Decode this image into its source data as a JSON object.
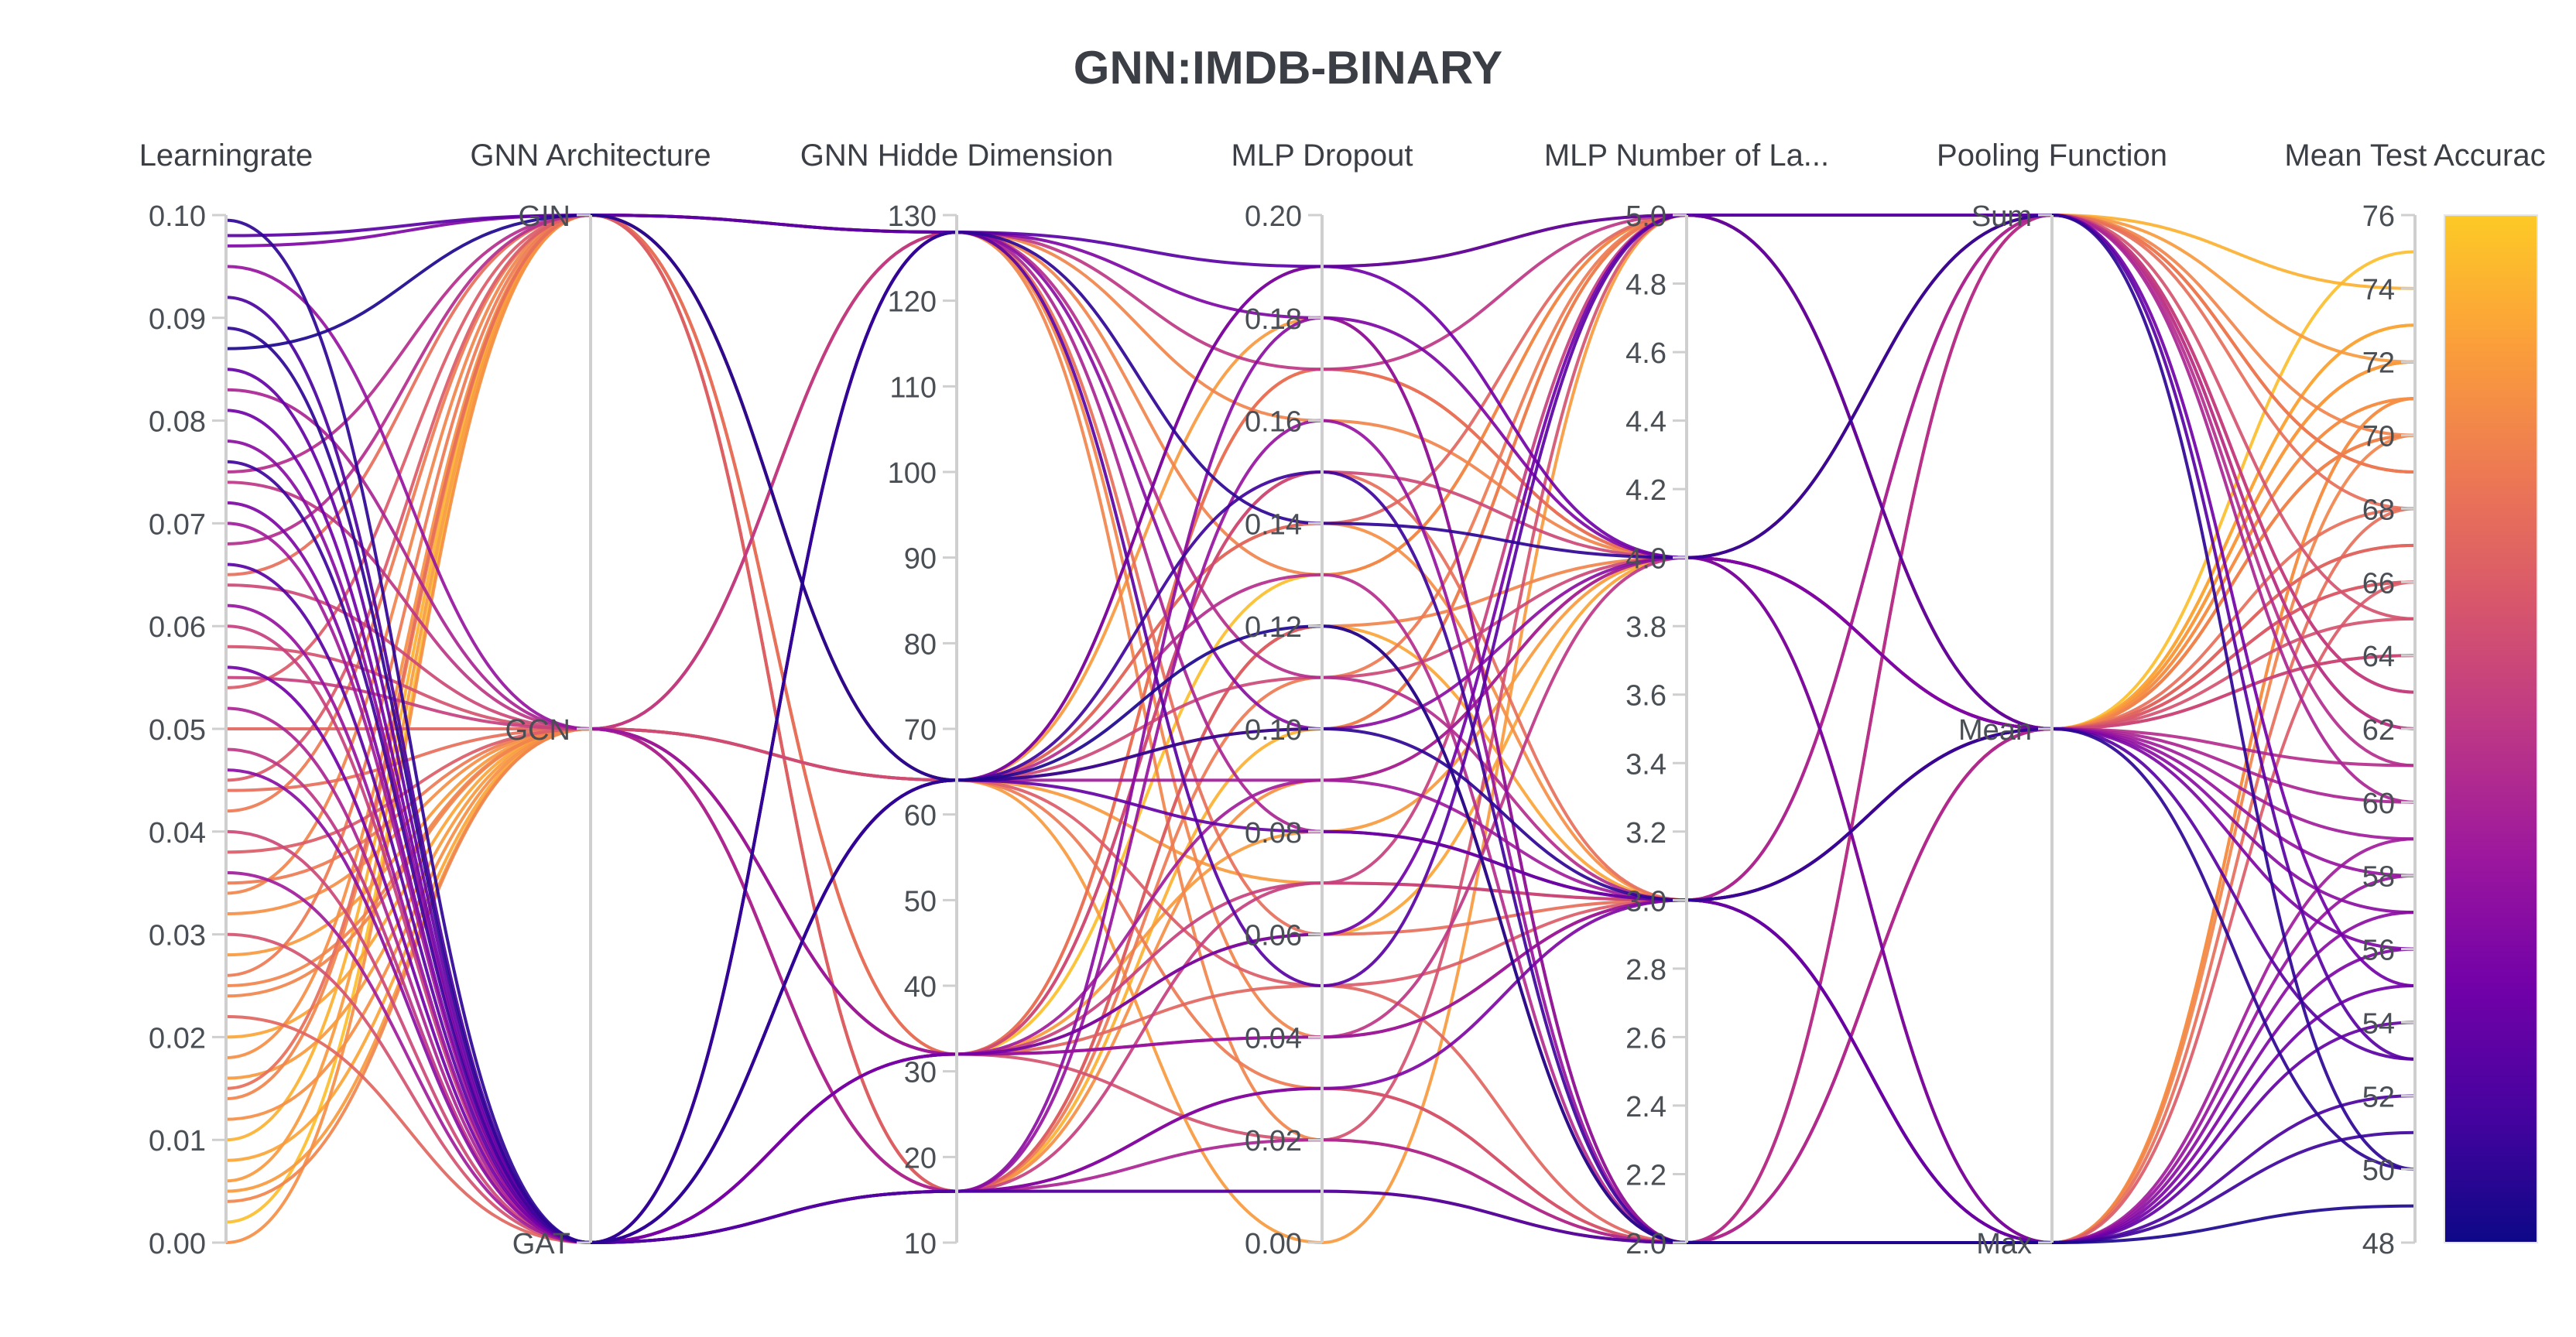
{
  "chart_data": {
    "type": "parallel_coordinates",
    "title": "GNN:IMDB-BINARY",
    "axes": [
      {
        "key": "lr",
        "label": "Learningrate",
        "kind": "numeric",
        "range": [
          0,
          0.1
        ],
        "ticks": [
          "0.00",
          "0.01",
          "0.02",
          "0.03",
          "0.04",
          "0.05",
          "0.06",
          "0.07",
          "0.08",
          "0.09",
          "0.10"
        ]
      },
      {
        "key": "arch",
        "label": "GNN Architecture",
        "kind": "categorical",
        "categories": [
          "GAT",
          "GCN",
          "GIN"
        ],
        "ticks": [
          "GAT",
          "GCN",
          "GIN"
        ]
      },
      {
        "key": "hid",
        "label": "GNN Hidde Dimension",
        "kind": "numeric",
        "range": [
          10,
          130
        ],
        "ticks": [
          "10",
          "20",
          "30",
          "40",
          "50",
          "60",
          "70",
          "80",
          "90",
          "100",
          "110",
          "120",
          "130"
        ]
      },
      {
        "key": "drop",
        "label": "MLP Dropout",
        "kind": "numeric",
        "range": [
          0,
          0.2
        ],
        "ticks": [
          "0.00",
          "0.02",
          "0.04",
          "0.06",
          "0.08",
          "0.10",
          "0.12",
          "0.14",
          "0.16",
          "0.18",
          "0.20"
        ]
      },
      {
        "key": "layers",
        "label": "MLP Number of La...",
        "kind": "numeric",
        "range": [
          2,
          5
        ],
        "ticks": [
          "2.0",
          "2.2",
          "2.4",
          "2.6",
          "2.8",
          "3.0",
          "3.2",
          "3.4",
          "3.6",
          "3.8",
          "4.0",
          "4.2",
          "4.4",
          "4.6",
          "4.8",
          "5.0"
        ]
      },
      {
        "key": "pool",
        "label": "Pooling Function",
        "kind": "categorical",
        "categories": [
          "Max",
          "Mean",
          "Sum"
        ],
        "ticks": [
          "Max",
          "Mean",
          "Sum"
        ]
      },
      {
        "key": "acc",
        "label": "Mean Test Accurac",
        "kind": "numeric",
        "range": [
          48,
          76
        ],
        "ticks": [
          "48",
          "50",
          "52",
          "54",
          "56",
          "58",
          "60",
          "62",
          "64",
          "66",
          "68",
          "70",
          "72",
          "74",
          "76"
        ]
      }
    ],
    "colorscale": {
      "range": [
        48,
        76
      ],
      "stops": [
        "#0d0887",
        "#46039f",
        "#7201a8",
        "#9c179e",
        "#bd3786",
        "#d8576b",
        "#ed7953",
        "#fb9f3a",
        "#fdca26",
        "#f0f921"
      ],
      "ticks": [
        "48",
        "50",
        "52",
        "54",
        "56",
        "58",
        "60",
        "62",
        "64",
        "66",
        "68",
        "70",
        "72",
        "74",
        "76"
      ]
    },
    "runs": [
      {
        "lr": 0.098,
        "arch": "GIN",
        "hid": 128,
        "drop": 0.19,
        "layers": 5,
        "pool": "Sum",
        "acc": 53
      },
      {
        "lr": 0.097,
        "arch": "GIN",
        "hid": 128,
        "drop": 0.18,
        "layers": 4,
        "pool": "Mean",
        "acc": 56
      },
      {
        "lr": 0.087,
        "arch": "GIN",
        "hid": 64,
        "drop": 0.12,
        "layers": 2,
        "pool": "Max",
        "acc": 49
      },
      {
        "lr": 0.095,
        "arch": "GCN",
        "hid": 32,
        "drop": 0.04,
        "layers": 3,
        "pool": "Mean",
        "acc": 58
      },
      {
        "lr": 0.092,
        "arch": "GAT",
        "hid": 16,
        "drop": 0.01,
        "layers": 2,
        "pool": "Max",
        "acc": 52
      },
      {
        "lr": 0.089,
        "arch": "GAT",
        "hid": 128,
        "drop": 0.14,
        "layers": 4,
        "pool": "Sum",
        "acc": 50
      },
      {
        "lr": 0.085,
        "arch": "GAT",
        "hid": 64,
        "drop": 0.08,
        "layers": 3,
        "pool": "Max",
        "acc": 54
      },
      {
        "lr": 0.083,
        "arch": "GCN",
        "hid": 16,
        "drop": 0.02,
        "layers": 2,
        "pool": "Mean",
        "acc": 60
      },
      {
        "lr": 0.081,
        "arch": "GAT",
        "hid": 32,
        "drop": 0.06,
        "layers": 5,
        "pool": "Sum",
        "acc": 55
      },
      {
        "lr": 0.078,
        "arch": "GAT",
        "hid": 128,
        "drop": 0.1,
        "layers": 4,
        "pool": "Mean",
        "acc": 57
      },
      {
        "lr": 0.076,
        "arch": "GAT",
        "hid": 64,
        "drop": 0.15,
        "layers": 2,
        "pool": "Max",
        "acc": 51
      },
      {
        "lr": 0.074,
        "arch": "GCN",
        "hid": 128,
        "drop": 0.17,
        "layers": 5,
        "pool": "Sum",
        "acc": 62
      },
      {
        "lr": 0.072,
        "arch": "GAT",
        "hid": 16,
        "drop": 0.03,
        "layers": 3,
        "pool": "Max",
        "acc": 56
      },
      {
        "lr": 0.07,
        "arch": "GAT",
        "hid": 32,
        "drop": 0.09,
        "layers": 4,
        "pool": "Mean",
        "acc": 59
      },
      {
        "lr": 0.068,
        "arch": "GIN",
        "hid": 64,
        "drop": 0.13,
        "layers": 2,
        "pool": "Sum",
        "acc": 61
      },
      {
        "lr": 0.066,
        "arch": "GAT",
        "hid": 128,
        "drop": 0.05,
        "layers": 5,
        "pool": "Mean",
        "acc": 53
      },
      {
        "lr": 0.064,
        "arch": "GCN",
        "hid": 64,
        "drop": 0.11,
        "layers": 4,
        "pool": "Mean",
        "acc": 64
      },
      {
        "lr": 0.062,
        "arch": "GAT",
        "hid": 16,
        "drop": 0.16,
        "layers": 2,
        "pool": "Max",
        "acc": 58
      },
      {
        "lr": 0.06,
        "arch": "GAT",
        "hid": 32,
        "drop": 0.07,
        "layers": 3,
        "pool": "Sum",
        "acc": 63
      },
      {
        "lr": 0.058,
        "arch": "GCN",
        "hid": 32,
        "drop": 0.02,
        "layers": 5,
        "pool": "Mean",
        "acc": 65
      },
      {
        "lr": 0.056,
        "arch": "GAT",
        "hid": 64,
        "drop": 0.19,
        "layers": 4,
        "pool": "Max",
        "acc": 55
      },
      {
        "lr": 0.054,
        "arch": "GIN",
        "hid": 16,
        "drop": 0.12,
        "layers": 2,
        "pool": "Mean",
        "acc": 66
      },
      {
        "lr": 0.052,
        "arch": "GAT",
        "hid": 128,
        "drop": 0.08,
        "layers": 3,
        "pool": "Sum",
        "acc": 60
      },
      {
        "lr": 0.05,
        "arch": "GCN",
        "hid": 64,
        "drop": 0.14,
        "layers": 5,
        "pool": "Mean",
        "acc": 67
      },
      {
        "lr": 0.048,
        "arch": "GAT",
        "hid": 32,
        "drop": 0.04,
        "layers": 4,
        "pool": "Sum",
        "acc": 62
      },
      {
        "lr": 0.046,
        "arch": "GAT",
        "hid": 16,
        "drop": 0.18,
        "layers": 2,
        "pool": "Max",
        "acc": 57
      },
      {
        "lr": 0.044,
        "arch": "GCN",
        "hid": 128,
        "drop": 0.06,
        "layers": 3,
        "pool": "Mean",
        "acc": 68
      },
      {
        "lr": 0.042,
        "arch": "GIN",
        "hid": 64,
        "drop": 0.1,
        "layers": 5,
        "pool": "Sum",
        "acc": 69
      },
      {
        "lr": 0.04,
        "arch": "GAT",
        "hid": 32,
        "drop": 0.15,
        "layers": 4,
        "pool": "Mean",
        "acc": 64
      },
      {
        "lr": 0.038,
        "arch": "GCN",
        "hid": 16,
        "drop": 0.01,
        "layers": 2,
        "pool": "Max",
        "acc": 66
      },
      {
        "lr": 0.036,
        "arch": "GAT",
        "hid": 64,
        "drop": 0.09,
        "layers": 3,
        "pool": "Max",
        "acc": 59
      },
      {
        "lr": 0.034,
        "arch": "GIN",
        "hid": 128,
        "drop": 0.13,
        "layers": 5,
        "pool": "Mean",
        "acc": 70
      },
      {
        "lr": 0.032,
        "arch": "GCN",
        "hid": 32,
        "drop": 0.17,
        "layers": 4,
        "pool": "Mean",
        "acc": 71
      },
      {
        "lr": 0.03,
        "arch": "GAT",
        "hid": 16,
        "drop": 0.03,
        "layers": 2,
        "pool": "Sum",
        "acc": 65
      },
      {
        "lr": 0.028,
        "arch": "GCN",
        "hid": 64,
        "drop": 0.07,
        "layers": 3,
        "pool": "Mean",
        "acc": 72
      },
      {
        "lr": 0.026,
        "arch": "GIN",
        "hid": 16,
        "drop": 0.11,
        "layers": 5,
        "pool": "Sum",
        "acc": 69
      },
      {
        "lr": 0.024,
        "arch": "GCN",
        "hid": 128,
        "drop": 0.16,
        "layers": 4,
        "pool": "Max",
        "acc": 70
      },
      {
        "lr": 0.022,
        "arch": "GAT",
        "hid": 32,
        "drop": 0.05,
        "layers": 2,
        "pool": "Mean",
        "acc": 67
      },
      {
        "lr": 0.02,
        "arch": "GCN",
        "hid": 16,
        "drop": 0.12,
        "layers": 3,
        "pool": "Mean",
        "acc": 73
      },
      {
        "lr": 0.018,
        "arch": "GIN",
        "hid": 64,
        "drop": 0.19,
        "layers": 5,
        "pool": "Mean",
        "acc": 71
      },
      {
        "lr": 0.016,
        "arch": "GCN",
        "hid": 32,
        "drop": 0.08,
        "layers": 4,
        "pool": "Sum",
        "acc": 72
      },
      {
        "lr": 0.014,
        "arch": "GIN",
        "hid": 128,
        "drop": 0.02,
        "layers": 2,
        "pool": "Mean",
        "acc": 70
      },
      {
        "lr": 0.012,
        "arch": "GCN",
        "hid": 64,
        "drop": 0.14,
        "layers": 3,
        "pool": "Max",
        "acc": 71
      },
      {
        "lr": 0.01,
        "arch": "GIN",
        "hid": 16,
        "drop": 0.1,
        "layers": 5,
        "pool": "Sum",
        "acc": 74
      },
      {
        "lr": 0.008,
        "arch": "GCN",
        "hid": 32,
        "drop": 0.06,
        "layers": 4,
        "pool": "Mean",
        "acc": 73
      },
      {
        "lr": 0.006,
        "arch": "GIN",
        "hid": 64,
        "drop": 0.18,
        "layers": 2,
        "pool": "Mean",
        "acc": 72
      },
      {
        "lr": 0.004,
        "arch": "GCN",
        "hid": 128,
        "drop": 0.04,
        "layers": 3,
        "pool": "Sum",
        "acc": 70
      },
      {
        "lr": 0.002,
        "arch": "GIN",
        "hid": 32,
        "drop": 0.13,
        "layers": 5,
        "pool": "Mean",
        "acc": 75
      },
      {
        "lr": 0.0,
        "arch": "GIN",
        "hid": 16,
        "drop": 0.09,
        "layers": 4,
        "pool": "Max",
        "acc": 71
      },
      {
        "lr": 0.065,
        "arch": "GIN",
        "hid": 32,
        "drop": 0.15,
        "layers": 3,
        "pool": "Max",
        "acc": 68
      },
      {
        "lr": 0.055,
        "arch": "GCN",
        "hid": 16,
        "drop": 0.07,
        "layers": 5,
        "pool": "Sum",
        "acc": 63
      },
      {
        "lr": 0.075,
        "arch": "GIN",
        "hid": 128,
        "drop": 0.11,
        "layers": 3,
        "pool": "Mean",
        "acc": 61
      },
      {
        "lr": 0.035,
        "arch": "GCN",
        "hid": 64,
        "drop": 0.03,
        "layers": 2,
        "pool": "Sum",
        "acc": 69
      },
      {
        "lr": 0.015,
        "arch": "GIN",
        "hid": 32,
        "drop": 0.17,
        "layers": 4,
        "pool": "Sum",
        "acc": 68
      },
      {
        "lr": 0.045,
        "arch": "GIN",
        "hid": 64,
        "drop": 0.05,
        "layers": 3,
        "pool": "Mean",
        "acc": 66
      },
      {
        "lr": 0.025,
        "arch": "GCN",
        "hid": 16,
        "drop": 0.12,
        "layers": 4,
        "pool": "Mean",
        "acc": 70
      },
      {
        "lr": 0.005,
        "arch": "GCN",
        "hid": 64,
        "drop": 0.0,
        "layers": 5,
        "pool": "Mean",
        "acc": 72
      },
      {
        "lr": 0.0995,
        "arch": "GAT",
        "hid": 64,
        "drop": 0.1,
        "layers": 3,
        "pool": "Mean",
        "acc": 50
      }
    ]
  }
}
